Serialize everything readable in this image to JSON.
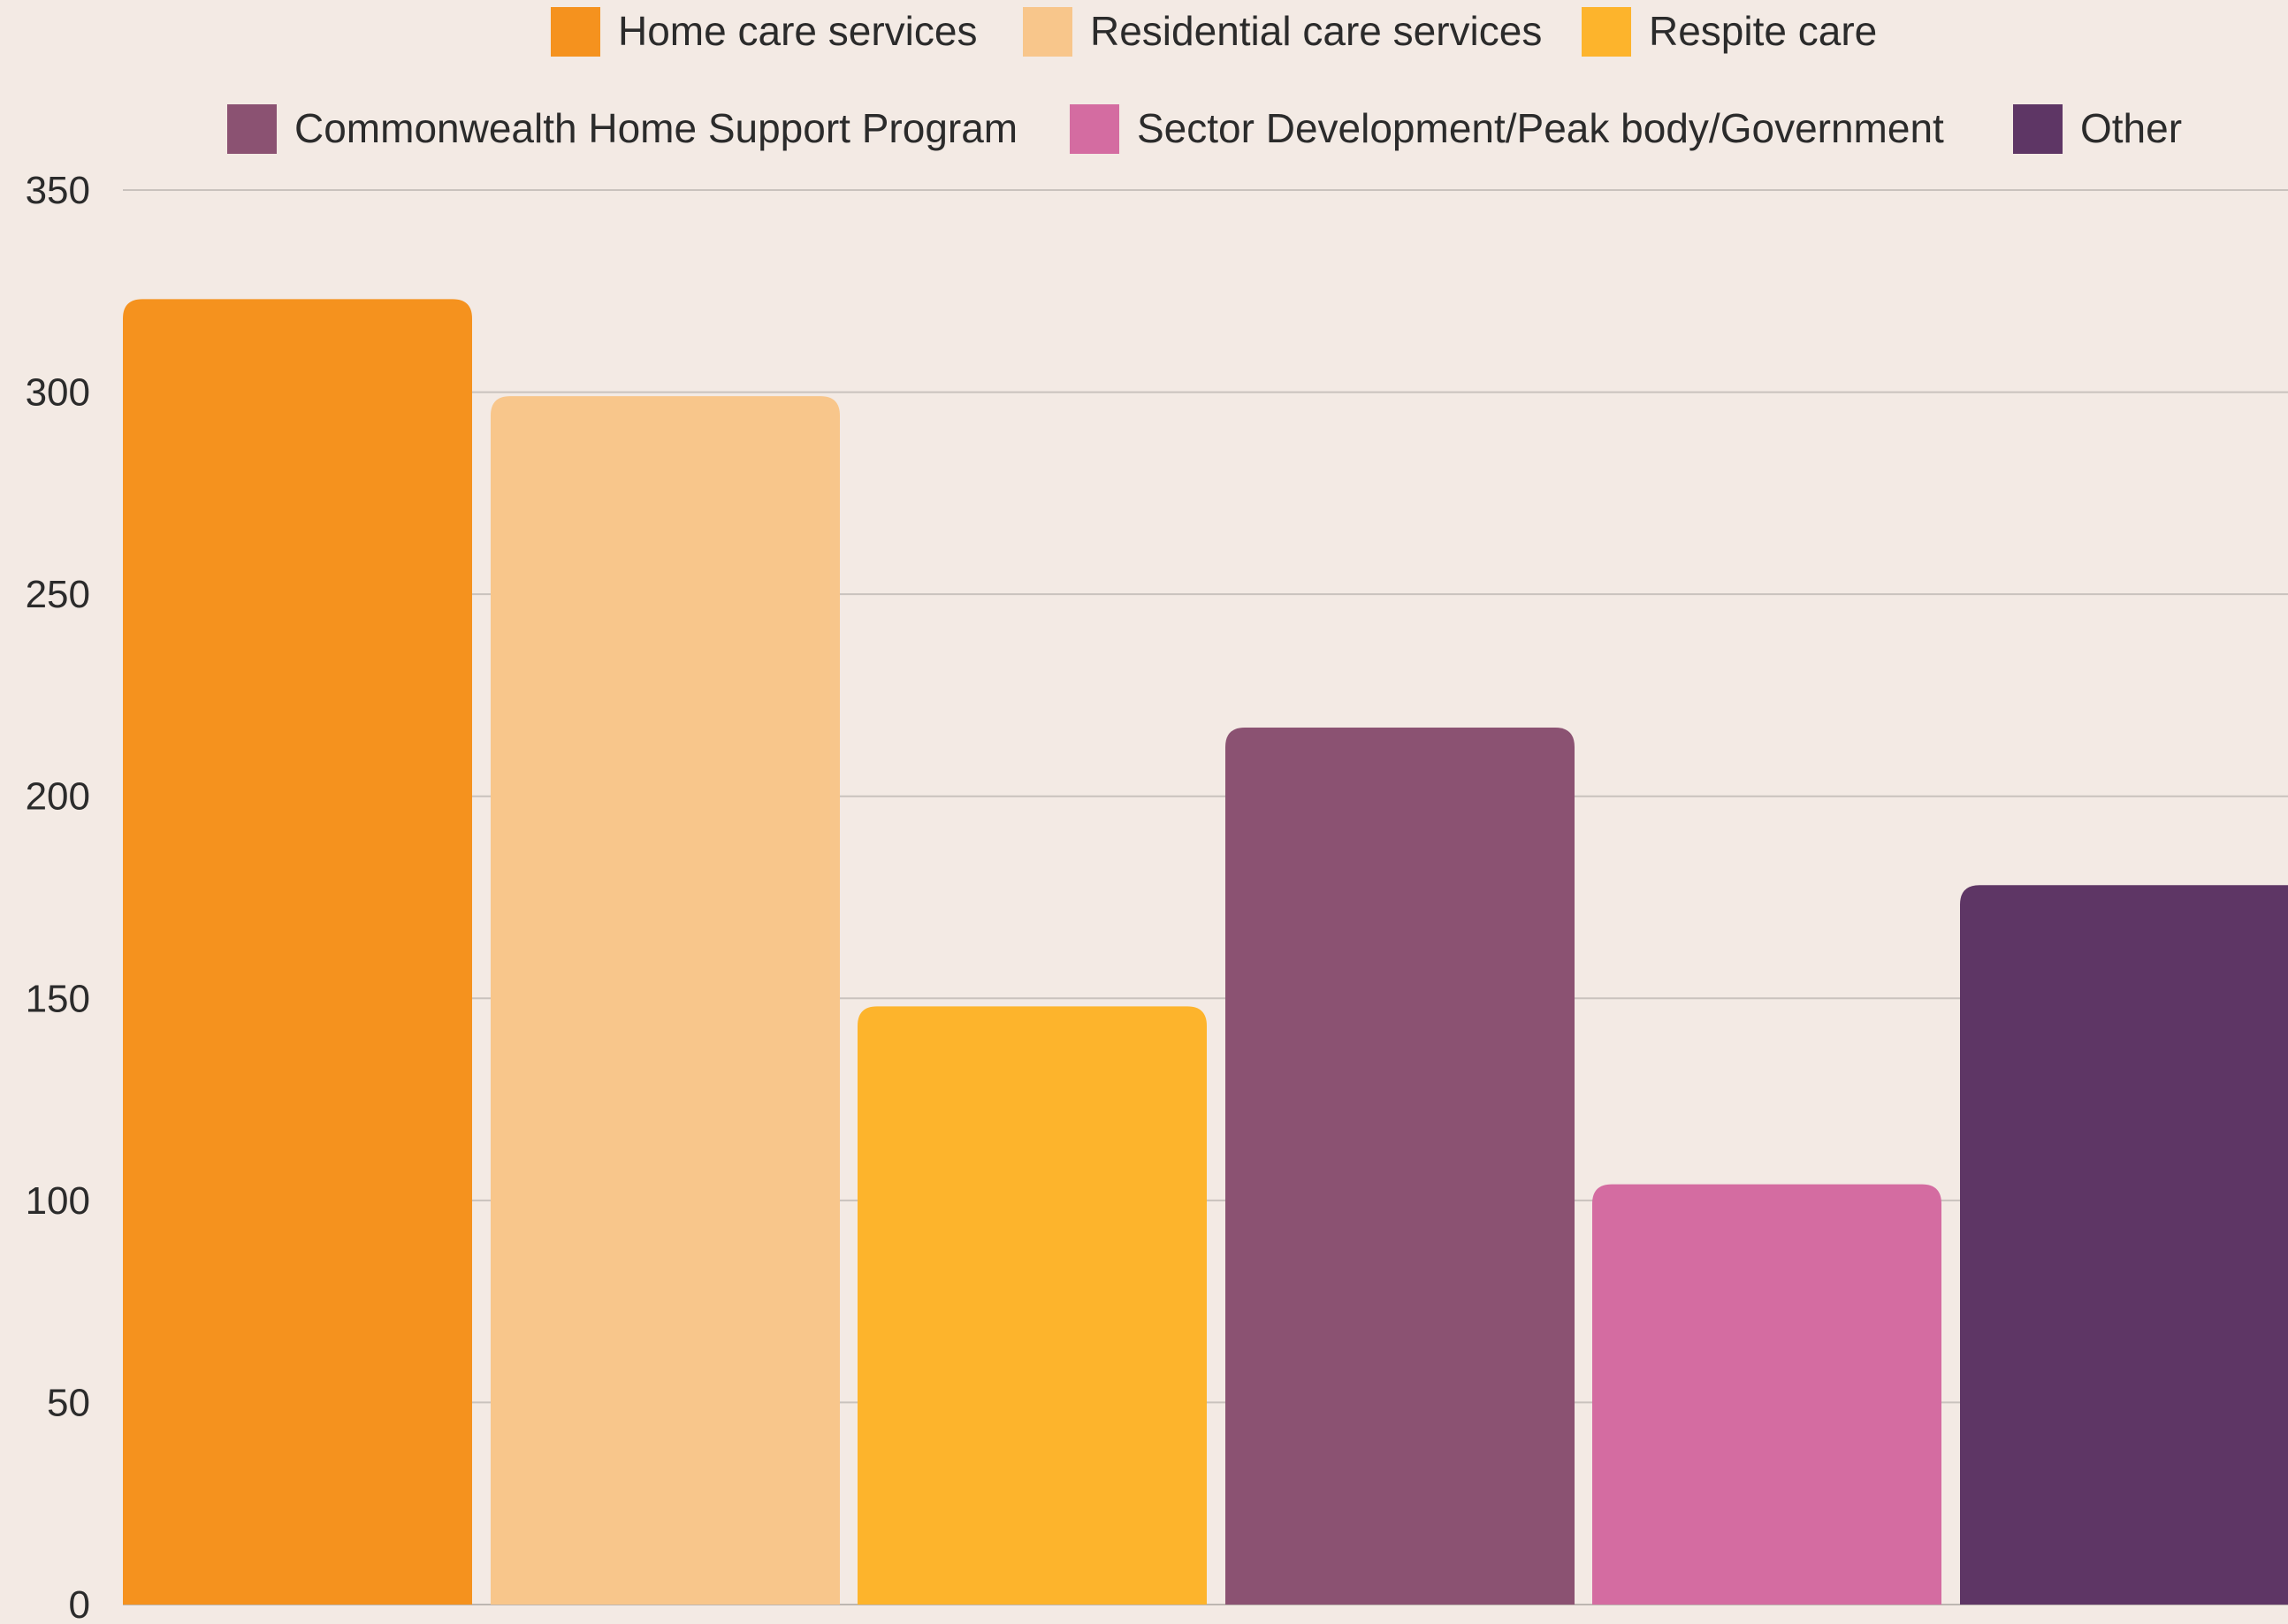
{
  "chart_data": {
    "type": "bar",
    "title": "",
    "xlabel": "",
    "ylabel": "",
    "ylim": [
      0,
      350
    ],
    "yticks": [
      0,
      50,
      100,
      150,
      200,
      250,
      300,
      350
    ],
    "grid": true,
    "legend_position": "top",
    "categories": [
      "Home care services",
      "Residential care services",
      "Respite care",
      "Commonwealth Home Support Program",
      "Sector Development/Peak body/Government",
      "Other"
    ],
    "values": [
      323,
      299,
      148,
      217,
      104,
      178
    ],
    "colors": [
      "#f5921e",
      "#f8c68b",
      "#fdb42c",
      "#8b5272",
      "#d46ca1",
      "#5e3665"
    ]
  }
}
